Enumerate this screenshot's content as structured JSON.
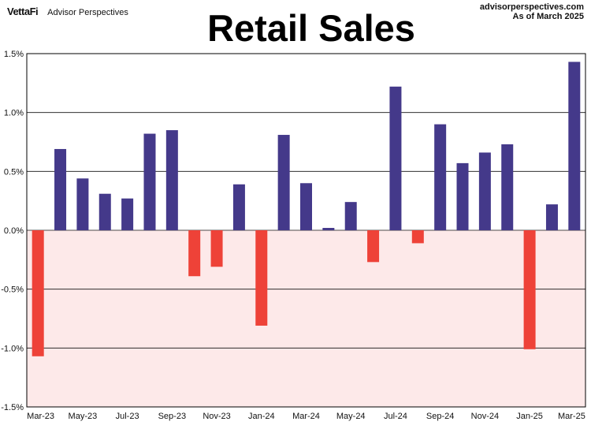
{
  "header": {
    "logo": "VettaFi",
    "brand": "Advisor Perspectives",
    "site": "advisorperspectives.com",
    "as_of": "As of March 2025"
  },
  "colors": {
    "positive": "#44398a",
    "negative": "#ee4238",
    "negative_zone": "#fde9e9",
    "grid": "#111111",
    "frame": "#000000"
  },
  "chart_data": {
    "type": "bar",
    "title": "Retail Sales",
    "xlabel": "",
    "ylabel": "",
    "ylim": [
      -1.5,
      1.5
    ],
    "grid": true,
    "y_ticks": [
      1.5,
      1.0,
      0.5,
      0.0,
      -0.5,
      -1.0,
      -1.5
    ],
    "y_tick_labels": [
      "1.5%",
      "1.0%",
      "0.5%",
      "0.0%",
      "-0.5%",
      "-1.0%",
      "-1.5%"
    ],
    "categories": [
      "Mar-23",
      "Apr-23",
      "May-23",
      "Jun-23",
      "Jul-23",
      "Aug-23",
      "Sep-23",
      "Oct-23",
      "Nov-23",
      "Dec-23",
      "Jan-24",
      "Feb-24",
      "Mar-24",
      "Apr-24",
      "May-24",
      "Jun-24",
      "Jul-24",
      "Aug-24",
      "Sep-24",
      "Oct-24",
      "Nov-24",
      "Dec-24",
      "Jan-25",
      "Feb-25",
      "Mar-25"
    ],
    "x_tick_labels": [
      "Mar-23",
      "May-23",
      "Jul-23",
      "Sep-23",
      "Nov-23",
      "Jan-24",
      "Mar-24",
      "May-24",
      "Jul-24",
      "Sep-24",
      "Nov-24",
      "Jan-25",
      "Mar-25"
    ],
    "values": [
      -1.07,
      0.69,
      0.44,
      0.31,
      0.27,
      0.82,
      0.85,
      -0.39,
      -0.31,
      0.39,
      -0.81,
      0.81,
      0.4,
      0.02,
      0.24,
      -0.27,
      1.22,
      -0.11,
      0.9,
      0.57,
      0.66,
      0.73,
      -1.01,
      0.22,
      1.43
    ]
  }
}
